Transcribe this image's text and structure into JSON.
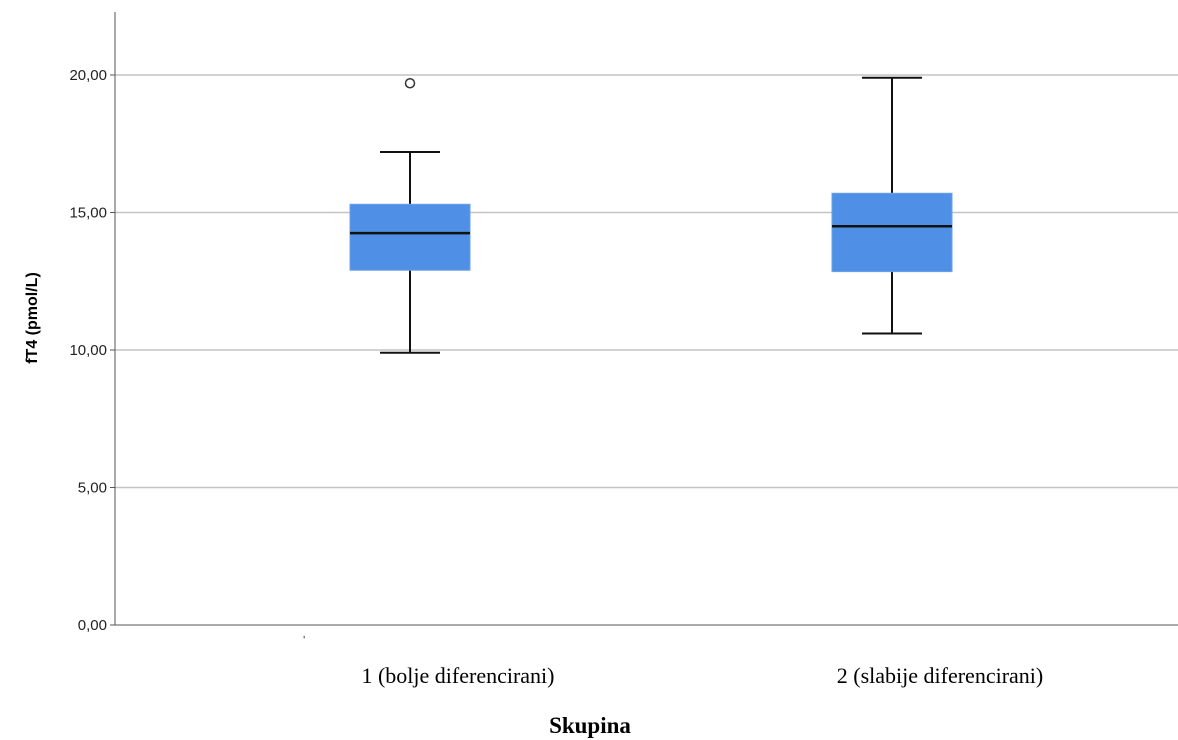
{
  "chart_data": {
    "type": "boxplot",
    "xlabel": "Skupina",
    "ylabel": "fT4 (pmol/L)",
    "ylim": [
      0,
      22
    ],
    "yticks": [
      0,
      5,
      10,
      15,
      20
    ],
    "ytick_labels": [
      "0,00",
      "5,00",
      "10,00",
      "15,00",
      "20,00"
    ],
    "grid": true,
    "box_color": "#4f8fe6",
    "categories": [
      "1 (bolje diferencirani)",
      "2 (slabije diferencirani)"
    ],
    "boxes": [
      {
        "whisker_low": 9.9,
        "q1": 12.9,
        "median": 14.25,
        "q3": 15.3,
        "whisker_high": 17.2,
        "outliers": [
          19.7
        ]
      },
      {
        "whisker_low": 10.6,
        "q1": 12.85,
        "median": 14.5,
        "q3": 15.7,
        "whisker_high": 19.9,
        "outliers": []
      }
    ],
    "stray_mark": "ʹ"
  }
}
